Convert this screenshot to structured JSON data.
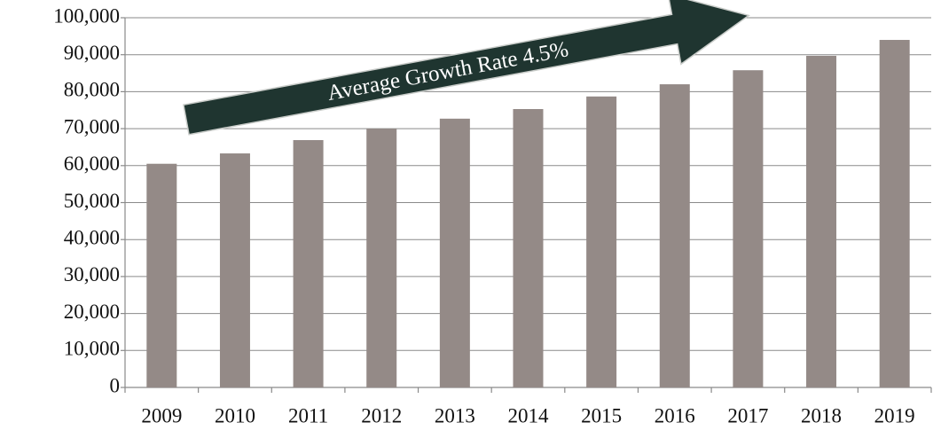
{
  "chart_data": {
    "type": "bar",
    "categories": [
      "2009",
      "2010",
      "2011",
      "2012",
      "2013",
      "2014",
      "2015",
      "2016",
      "2017",
      "2018",
      "2019"
    ],
    "values": [
      60500,
      63300,
      66900,
      70000,
      72700,
      75300,
      78700,
      82000,
      85800,
      89700,
      94000
    ],
    "color": "#948a87",
    "ylim": [
      0,
      100000
    ],
    "yticks": [
      0,
      {
        "value": 10000,
        "label": "10,000"
      },
      {
        "value": 20000,
        "label": "20,000"
      },
      {
        "value": 30000,
        "label": "30,000"
      },
      {
        "value": 40000,
        "label": "40,000"
      },
      {
        "value": 50000,
        "label": "50,000"
      },
      {
        "value": 60000,
        "label": "60,000"
      },
      {
        "value": 70000,
        "label": "70,000"
      },
      {
        "value": 80000,
        "label": "80,000"
      },
      {
        "value": 90000,
        "label": "90,000"
      },
      {
        "value": 100000,
        "label": "100,000"
      }
    ],
    "grid": true,
    "annotation": "Average Growth Rate  4.5%"
  }
}
